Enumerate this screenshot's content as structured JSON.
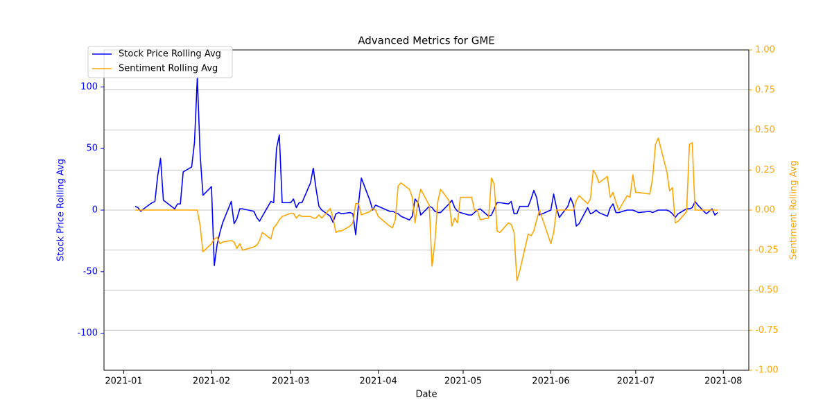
{
  "chart_data": {
    "type": "line",
    "title": "Advanced Metrics for GME",
    "xlabel": "Date",
    "ylabel": "Stock Price Rolling Avg",
    "y2label": "Sentiment Rolling Avg",
    "x": [
      "2021-01-05",
      "2021-01-06",
      "2021-01-07",
      "2021-01-08",
      "2021-01-11",
      "2021-01-12",
      "2021-01-13",
      "2021-01-14",
      "2021-01-15",
      "2021-01-19",
      "2021-01-20",
      "2021-01-21",
      "2021-01-22",
      "2021-01-25",
      "2021-01-26",
      "2021-01-27",
      "2021-01-28",
      "2021-01-29",
      "2021-02-01",
      "2021-02-02",
      "2021-02-03",
      "2021-02-04",
      "2021-02-05",
      "2021-02-08",
      "2021-02-09",
      "2021-02-10",
      "2021-02-11",
      "2021-02-12",
      "2021-02-16",
      "2021-02-17",
      "2021-02-18",
      "2021-02-19",
      "2021-02-22",
      "2021-02-23",
      "2021-02-24",
      "2021-02-25",
      "2021-02-26",
      "2021-03-01",
      "2021-03-02",
      "2021-03-03",
      "2021-03-04",
      "2021-03-05",
      "2021-03-08",
      "2021-03-09",
      "2021-03-10",
      "2021-03-11",
      "2021-03-12",
      "2021-03-15",
      "2021-03-16",
      "2021-03-17",
      "2021-03-18",
      "2021-03-19",
      "2021-03-22",
      "2021-03-23",
      "2021-03-24",
      "2021-03-25",
      "2021-03-26",
      "2021-03-29",
      "2021-03-30",
      "2021-03-31",
      "2021-04-01",
      "2021-04-05",
      "2021-04-06",
      "2021-04-07",
      "2021-04-08",
      "2021-04-09",
      "2021-04-12",
      "2021-04-13",
      "2021-04-14",
      "2021-04-15",
      "2021-04-16",
      "2021-04-19",
      "2021-04-20",
      "2021-04-21",
      "2021-04-22",
      "2021-04-23",
      "2021-04-26",
      "2021-04-27",
      "2021-04-28",
      "2021-04-29",
      "2021-04-30",
      "2021-05-03",
      "2021-05-04",
      "2021-05-05",
      "2021-05-06",
      "2021-05-07",
      "2021-05-10",
      "2021-05-11",
      "2021-05-12",
      "2021-05-13",
      "2021-05-14",
      "2021-05-17",
      "2021-05-18",
      "2021-05-19",
      "2021-05-20",
      "2021-05-21",
      "2021-05-24",
      "2021-05-25",
      "2021-05-26",
      "2021-05-27",
      "2021-05-28",
      "2021-06-01",
      "2021-06-02",
      "2021-06-03",
      "2021-06-04",
      "2021-06-07",
      "2021-06-08",
      "2021-06-09",
      "2021-06-10",
      "2021-06-11",
      "2021-06-14",
      "2021-06-15",
      "2021-06-16",
      "2021-06-17",
      "2021-06-18",
      "2021-06-21",
      "2021-06-22",
      "2021-06-23",
      "2021-06-24",
      "2021-06-25",
      "2021-06-28",
      "2021-06-29",
      "2021-06-30",
      "2021-07-01",
      "2021-07-02",
      "2021-07-06",
      "2021-07-07",
      "2021-07-08",
      "2021-07-09",
      "2021-07-12",
      "2021-07-13",
      "2021-07-14",
      "2021-07-15",
      "2021-07-16",
      "2021-07-19",
      "2021-07-20",
      "2021-07-21",
      "2021-07-22",
      "2021-07-23",
      "2021-07-26",
      "2021-07-27",
      "2021-07-28",
      "2021-07-29",
      "2021-07-30"
    ],
    "series": [
      {
        "name": "Stock Price Rolling Avg",
        "color": "#0000ff",
        "axis": "y",
        "values": [
          3,
          2,
          -1,
          1,
          6,
          7,
          28,
          42,
          8,
          1,
          5,
          5,
          31,
          35,
          55,
          108,
          45,
          12,
          19,
          -45,
          -28,
          -18,
          -10,
          7,
          -11,
          -7,
          1,
          1,
          -1,
          -6,
          -9,
          -5,
          7,
          6,
          50,
          61,
          6,
          6,
          9,
          2,
          6,
          6,
          22,
          34,
          17,
          3,
          0,
          -5,
          -10,
          -3,
          -2,
          -3,
          -2,
          -3,
          -20,
          5,
          26,
          8,
          0,
          4,
          3,
          -1,
          -1,
          -2,
          -3,
          -5,
          -8,
          -5,
          9,
          6,
          -4,
          3,
          2,
          -1,
          -2,
          -2,
          5,
          8,
          2,
          -1,
          -2,
          -4,
          -4,
          -2,
          0,
          1,
          -5,
          -4,
          1,
          6,
          6,
          5,
          7,
          -3,
          -3,
          3,
          3,
          9,
          16,
          10,
          -4,
          0,
          13,
          2,
          -6,
          3,
          10,
          4,
          -13,
          -11,
          2,
          -3,
          -2,
          0,
          -2,
          -5,
          2,
          5,
          -2,
          -2,
          0,
          0,
          0,
          -1,
          -2,
          -1,
          -2,
          -1,
          0,
          0,
          -1,
          -3,
          -6,
          -3,
          1,
          1,
          2,
          7,
          4,
          -3,
          -1,
          1,
          -4,
          -2
        ]
      },
      {
        "name": "Sentiment Rolling Avg",
        "color": "#ffa500",
        "axis": "y2",
        "values": [
          0,
          0,
          0,
          0,
          0,
          0,
          0,
          0,
          0,
          0,
          0,
          0,
          0,
          0,
          0,
          0,
          -0.1,
          -0.26,
          -0.21,
          -0.18,
          -0.17,
          -0.21,
          -0.2,
          -0.19,
          -0.2,
          -0.24,
          -0.21,
          -0.25,
          -0.23,
          -0.22,
          -0.19,
          -0.14,
          -0.18,
          -0.11,
          -0.09,
          -0.06,
          -0.04,
          -0.02,
          -0.02,
          -0.05,
          -0.03,
          -0.04,
          -0.04,
          -0.05,
          -0.05,
          -0.03,
          -0.05,
          0.01,
          -0.05,
          -0.14,
          -0.13,
          -0.13,
          -0.1,
          -0.08,
          0.04,
          0.04,
          -0.03,
          -0.01,
          0.01,
          0,
          -0.04,
          -0.1,
          -0.11,
          -0.06,
          0.15,
          0.17,
          0.13,
          0.08,
          -0.08,
          0.05,
          0.13,
          0.03,
          -0.35,
          -0.2,
          0.05,
          0.13,
          0.06,
          -0.1,
          -0.05,
          -0.08,
          0.08,
          0.08,
          0.08,
          0,
          0,
          -0.06,
          -0.05,
          0.2,
          0.16,
          -0.13,
          -0.14,
          -0.08,
          -0.09,
          -0.14,
          -0.44,
          -0.38,
          -0.15,
          -0.16,
          -0.13,
          -0.06,
          0,
          -0.21,
          -0.14,
          0,
          0,
          0,
          0,
          0,
          0.06,
          0.09,
          0.04,
          0.07,
          0.25,
          0.22,
          0.17,
          0.21,
          0.08,
          0.11,
          0.05,
          0,
          0.09,
          0.08,
          0.22,
          0.11,
          0.11,
          0.1,
          0.2,
          0.41,
          0.45,
          0.24,
          0.12,
          0.14,
          -0.08,
          -0.07,
          -0.01,
          0.41,
          0.42,
          0,
          0,
          0,
          0,
          0,
          0,
          0
        ]
      }
    ],
    "xlim": [
      "2020-12-25",
      "2021-08-10"
    ],
    "xticks": [
      "2021-01",
      "2021-02",
      "2021-03",
      "2021-04",
      "2021-05",
      "2021-06",
      "2021-07",
      "2021-08"
    ],
    "ylim": [
      -130,
      130
    ],
    "yticks": [
      -100,
      -50,
      0,
      50,
      100
    ],
    "y2lim": [
      -1,
      1
    ],
    "y2ticks": [
      {
        "value": -1,
        "label": "-1.00"
      },
      {
        "value": -0.75,
        "label": "-0.75"
      },
      {
        "value": -0.5,
        "label": "-0.50"
      },
      {
        "value": -0.25,
        "label": "-0.25"
      },
      {
        "value": 0,
        "label": "0.00"
      },
      {
        "value": 0.25,
        "label": "0.25"
      },
      {
        "value": 0.5,
        "label": "0.50"
      },
      {
        "value": 0.75,
        "label": "0.75"
      },
      {
        "value": 1,
        "label": "1.00"
      }
    ],
    "grid": "y2",
    "legend": "upper left"
  }
}
